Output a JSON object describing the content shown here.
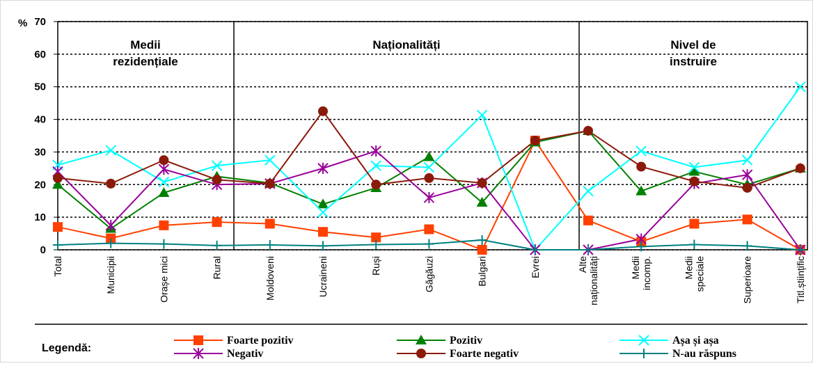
{
  "chart_data": {
    "type": "line",
    "y_label": "%",
    "groups": [
      {
        "lines": [
          "Medii",
          "rezidențiale"
        ]
      },
      {
        "lines": [
          "Naționalități"
        ]
      },
      {
        "lines": [
          "Nivel de",
          "instruire"
        ]
      }
    ],
    "categories": [
      "Total",
      "Municipii",
      "Orașe mici",
      "Rural",
      "Moldoveni",
      "Ucraineni",
      "Ruși",
      "Găgăuzi",
      "Bulgari",
      "Evrei",
      "Alte naționalități",
      "Medii incomp.",
      "Medii speciale",
      "Superioare",
      "Titl.științific"
    ],
    "series": [
      {
        "name": "Foarte pozitiv",
        "color": "#ff4000",
        "marker": "square",
        "values": [
          7,
          3.5,
          7.5,
          8.5,
          8,
          5.5,
          3.8,
          6.3,
          0,
          33.5,
          9,
          2.5,
          8,
          9.3,
          0
        ]
      },
      {
        "name": "Pozitiv",
        "color": "#008000",
        "marker": "triangle",
        "values": [
          20,
          6.5,
          17.5,
          22.5,
          20.5,
          14,
          19,
          28.5,
          14.5,
          33,
          36.5,
          18,
          24,
          20,
          25
        ]
      },
      {
        "name": "Așa și așa",
        "color": "#00ffff",
        "marker": "x",
        "values": [
          26,
          30.5,
          20.8,
          25.8,
          27.5,
          11.5,
          25.8,
          25.3,
          41.3,
          0,
          18,
          30.3,
          25.3,
          27.5,
          50
        ]
      },
      {
        "name": "Negativ",
        "color": "#990099",
        "marker": "star",
        "values": [
          24,
          7.5,
          24.7,
          20,
          20.3,
          25,
          30.3,
          16,
          20.5,
          0,
          0,
          3.3,
          20.3,
          23,
          0
        ]
      },
      {
        "name": "Foarte negativ",
        "color": "#8b1a0a",
        "marker": "circle",
        "values": [
          22,
          20.3,
          27.5,
          21.5,
          20.3,
          42.5,
          20,
          22,
          20.5,
          33.5,
          36.5,
          25.5,
          21,
          19,
          25
        ]
      },
      {
        "name": "N-au răspuns",
        "color": "#008080",
        "marker": "plus",
        "values": [
          1.5,
          2,
          1.8,
          1.3,
          1.5,
          1.2,
          1.6,
          1.8,
          3,
          0,
          0,
          1,
          1.6,
          1.2,
          0
        ]
      }
    ],
    "ylim": [
      0,
      70
    ],
    "yticks": [
      0,
      10,
      20,
      30,
      40,
      50,
      60,
      70
    ],
    "grid": true,
    "legend_title": "Legendă:",
    "legend_columns": 3
  }
}
